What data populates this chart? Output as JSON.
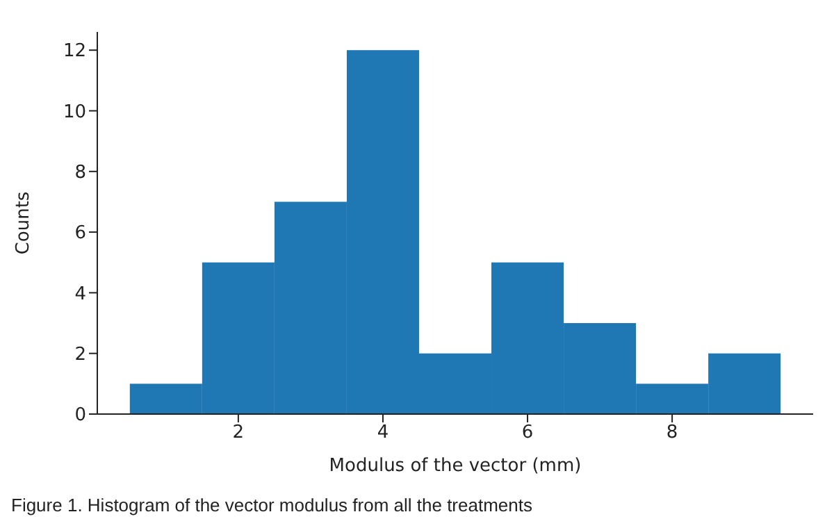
{
  "chart_data": {
    "type": "histogram",
    "xlabel": "Modulus of the vector (mm)",
    "ylabel": "Counts",
    "bins": [
      0.5,
      1.5,
      2.5,
      3.5,
      4.5,
      5.5,
      6.5,
      7.5,
      8.5,
      9.5
    ],
    "values": [
      1,
      5,
      7,
      12,
      2,
      5,
      3,
      1,
      2
    ],
    "color": "#1f77b4",
    "xlim": [
      0.05,
      9.95
    ],
    "xticks": [
      2,
      4,
      6,
      8
    ],
    "ylim": [
      0,
      12.6
    ],
    "yticks": [
      0,
      2,
      4,
      6,
      8,
      10,
      12
    ],
    "grid": false,
    "annotations": [
      "Figure 1. Histogram of the vector modulus from all the treatments"
    ]
  }
}
